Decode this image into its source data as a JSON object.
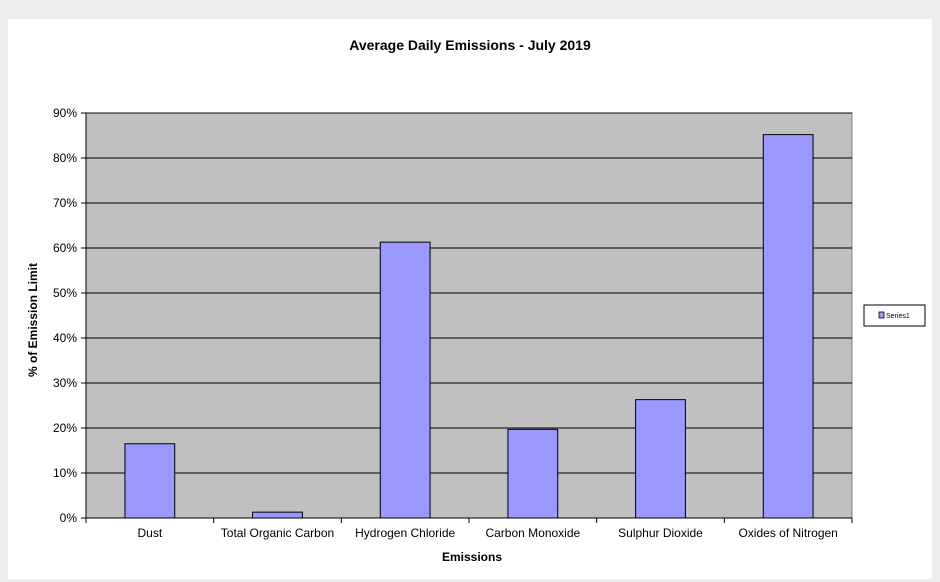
{
  "chart_data": {
    "type": "bar",
    "title": "Average Daily Emissions - July 2019",
    "xlabel": "Emissions",
    "ylabel": "% of Emission Limit",
    "categories": [
      "Dust",
      "Total Organic Carbon",
      "Hydrogen Chloride",
      "Carbon Monoxide",
      "Sulphur Dioxide",
      "Oxides of Nitrogen"
    ],
    "series": [
      {
        "name": "Series1",
        "values": [
          16.5,
          1.3,
          61.3,
          19.7,
          26.3,
          85.2
        ]
      }
    ],
    "ylim": [
      0,
      90
    ],
    "ytick_step": 10,
    "ytick_labels": [
      "0%",
      "10%",
      "20%",
      "30%",
      "40%",
      "50%",
      "60%",
      "70%",
      "80%",
      "90%"
    ],
    "grid": true,
    "legend_position": "right",
    "colors": {
      "plot_background": "#c0c0c0",
      "bar_fill": "#9999ff",
      "bar_stroke": "#000000"
    }
  }
}
